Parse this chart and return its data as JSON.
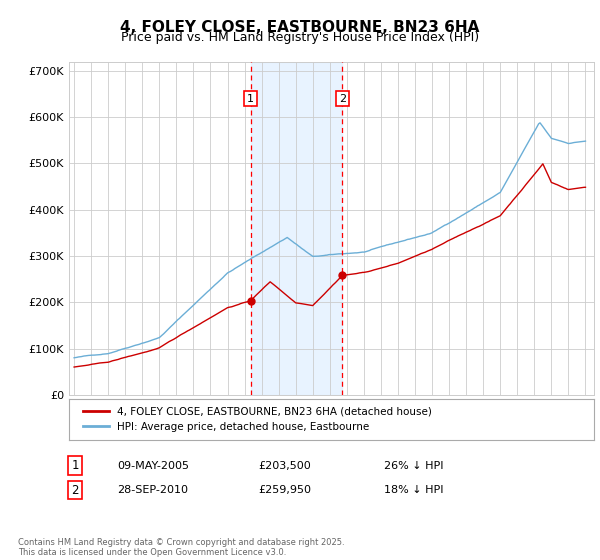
{
  "title": "4, FOLEY CLOSE, EASTBOURNE, BN23 6HA",
  "subtitle": "Price paid vs. HM Land Registry's House Price Index (HPI)",
  "ylim": [
    0,
    720000
  ],
  "yticks": [
    0,
    100000,
    200000,
    300000,
    400000,
    500000,
    600000,
    700000
  ],
  "ytick_labels": [
    "£0",
    "£100K",
    "£200K",
    "£300K",
    "£400K",
    "£500K",
    "£600K",
    "£700K"
  ],
  "sale1_date": 2005.35,
  "sale1_price": 203500,
  "sale2_date": 2010.74,
  "sale2_price": 259950,
  "sale1_text": "09-MAY-2005",
  "sale1_price_text": "£203,500",
  "sale1_hpi_text": "26% ↓ HPI",
  "sale2_text": "28-SEP-2010",
  "sale2_price_text": "£259,950",
  "sale2_hpi_text": "18% ↓ HPI",
  "hpi_color": "#6baed6",
  "price_color": "#cc0000",
  "grid_color": "#cccccc",
  "shaded_color": "#ddeeff",
  "title_fontsize": 11,
  "subtitle_fontsize": 9,
  "axis_fontsize": 8,
  "legend_label_red": "4, FOLEY CLOSE, EASTBOURNE, BN23 6HA (detached house)",
  "legend_label_blue": "HPI: Average price, detached house, Eastbourne",
  "footer_text": "Contains HM Land Registry data © Crown copyright and database right 2025.\nThis data is licensed under the Open Government Licence v3.0.",
  "background_color": "#ffffff"
}
